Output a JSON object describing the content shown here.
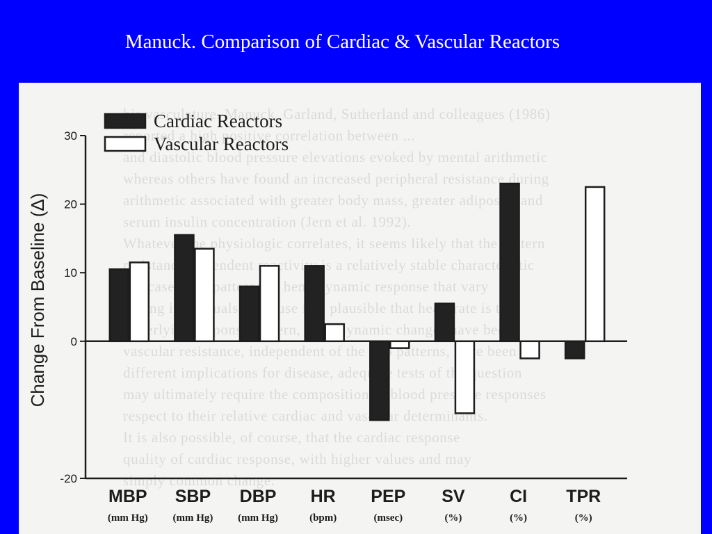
{
  "slide": {
    "title": "Manuck.  Comparison of Cardiac & Vascular Reactors"
  },
  "colors": {
    "background": "#0000ff",
    "title_text": "#ffffff",
    "panel": "#f4f4f2",
    "cardiac_fill": "#222222",
    "vascular_fill": "#ffffff",
    "ink": "#1c1c1c"
  },
  "bleed_through_text": [
    "his vasculature. Manuck, Garland, Sutherland and colleagues (1986)",
    "reported a high positive correlation between ...",
    "and diastolic blood pressure elevations evoked by mental arithmetic",
    "whereas others have found an increased peripheral resistance during",
    "arithmetic associated with greater body mass, greater adiposity and",
    "serum insulin concentration (Jern et al. 1992).",
    "Whatever the physiologic correlates, it seems likely that the pattern",
    "resistance-dependent reactivity is a relatively stable characteristic",
    "our case from patterns of hemodynamic response that vary",
    "among individuals. Because it is plausible that heart rate is the",
    "underlying response pattern, hemodynamic changes have been",
    "vascular resistance, independent of the two patterns, have been",
    "different implications for disease, adequate tests of the question",
    "may ultimately require the composition of blood pressure responses",
    "respect to their relative cardiac and vascular determinants.",
    "It is also possible, of course, that the cardiac response",
    "quality of cardiac response, with higher values and may",
    "simply common change."
  ],
  "chart_data": {
    "type": "bar",
    "title": "",
    "xlabel": "",
    "ylabel": "Change From Baseline (Δ)",
    "ylim": [
      -20,
      30
    ],
    "yticks": [
      "30",
      "20",
      "10",
      "0",
      "-20"
    ],
    "ytick_values": [
      30,
      20,
      10,
      0,
      -20
    ],
    "grid": false,
    "legend_position": "top-left",
    "categories": [
      "MBP",
      "SBP",
      "DBP",
      "HR",
      "PEP",
      "SV",
      "CI",
      "TPR"
    ],
    "units": [
      "(mm Hg)",
      "(mm Hg)",
      "(mm Hg)",
      "(bpm)",
      "(msec)",
      "(%)",
      "(%)",
      "(%)"
    ],
    "series": [
      {
        "name": "Cardiac Reactors",
        "fill": "#222222",
        "values": [
          10.5,
          15.5,
          8,
          11,
          -11.5,
          5.5,
          23,
          -2.5
        ]
      },
      {
        "name": "Vascular Reactors",
        "fill": "#ffffff",
        "values": [
          11.5,
          13.5,
          11,
          2.5,
          -1,
          -10.5,
          -2.5,
          22.5
        ]
      }
    ]
  }
}
